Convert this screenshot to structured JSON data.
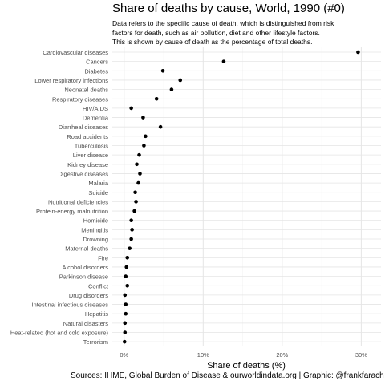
{
  "title": "Share of deaths by cause, World, 1990 (#0)",
  "subtitle_lines": [
    "Data refers to the specific cause of death, which is distinguished from risk",
    "factors for death, such as air pollution, diet and other lifestyle factors.",
    "This is shown by cause of death as the percentage of total deaths."
  ],
  "caption": "Sources: IHME, Global Burden of Disease & ourworldindata.org | Graphic: @frankfarach",
  "colors": {
    "point": "#000000",
    "grid": "#e5e5e5",
    "text": "#4d4d4d"
  },
  "chart_data": {
    "type": "scatter",
    "title": "Share of deaths by cause, World, 1990 (#0)",
    "xlabel": "Share of deaths (%)",
    "ylabel": "",
    "xlim": [
      -1.5,
      32.5
    ],
    "x_ticks": [
      0,
      10,
      20,
      30
    ],
    "x_tick_labels": [
      "0%",
      "10%",
      "20%",
      "30%"
    ],
    "grid": true,
    "categories": [
      "Cardiovascular diseases",
      "Cancers",
      "Diabetes",
      "Lower respiratory infections",
      "Neonatal deaths",
      "Respiratory diseases",
      "HIV/AIDS",
      "Dementia",
      "Diarrheal diseases",
      "Road accidents",
      "Tuberculosis",
      "Liver disease",
      "Kidney disease",
      "Digestive diseases",
      "Malaria",
      "Suicide",
      "Nutritional deficiencies",
      "Protein-energy malnutrition",
      "Homicide",
      "Meningitis",
      "Drowning",
      "Maternal deaths",
      "Fire",
      "Alcohol disorders",
      "Parkinson disease",
      "Conflict",
      "Drug disorders",
      "Intestinal infectious diseases",
      "Hepatitis",
      "Natural disasters",
      "Heat-related (hot and cold exposure)",
      "Terrorism"
    ],
    "values": [
      29.6,
      12.6,
      4.9,
      7.1,
      6.0,
      4.1,
      0.9,
      2.4,
      4.6,
      2.7,
      2.5,
      1.9,
      1.6,
      2.0,
      1.8,
      1.4,
      1.5,
      1.3,
      0.9,
      1.0,
      0.9,
      0.7,
      0.4,
      0.3,
      0.2,
      0.4,
      0.1,
      0.2,
      0.2,
      0.1,
      0.1,
      0.05
    ]
  }
}
